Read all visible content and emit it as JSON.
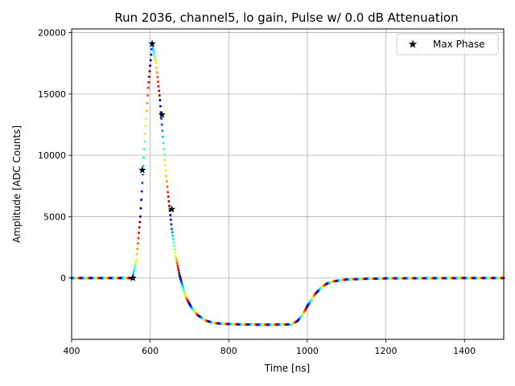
{
  "chart_data": {
    "type": "scatter",
    "title": "Run 2036, channel5, lo gain, Pulse w/ 0.0 dB Attenuation",
    "xlabel": "Time [ns]",
    "ylabel": "Amplitude [ADC Counts]",
    "xlim": [
      400,
      1500
    ],
    "ylim": [
      -5000,
      20300
    ],
    "xticks": [
      400,
      600,
      800,
      1000,
      1200,
      1400
    ],
    "xtick_labels": [
      "400",
      "600",
      "800",
      "1000",
      "1200",
      "1400"
    ],
    "yticks": [
      0,
      5000,
      10000,
      15000,
      20000
    ],
    "ytick_labels": [
      "0",
      "5000",
      "10000",
      "15000",
      "20000"
    ],
    "grid": true,
    "legend": {
      "placement": "top-right",
      "entries": [
        "Max Phase"
      ]
    },
    "colormap": "jet",
    "series": [
      {
        "name": "",
        "marker": "dot",
        "colored_by": "phase",
        "waveform": {
          "x": [
            400,
            555,
            565,
            575,
            585,
            595,
            605,
            615,
            625,
            635,
            645,
            655,
            665,
            675,
            690,
            705,
            720,
            740,
            760,
            780,
            800,
            830,
            870,
            920,
            960,
            975,
            990,
            1000,
            1010,
            1020,
            1035,
            1050,
            1070,
            1100,
            1150,
            1200,
            1300,
            1400,
            1500
          ],
          "y": [
            0,
            0,
            1500,
            5000,
            10500,
            15500,
            19100,
            17500,
            14500,
            10500,
            7000,
            4000,
            1800,
            200,
            -1500,
            -2400,
            -3000,
            -3450,
            -3650,
            -3720,
            -3750,
            -3780,
            -3800,
            -3800,
            -3780,
            -3500,
            -2900,
            -2300,
            -1800,
            -1300,
            -800,
            -450,
            -250,
            -120,
            -60,
            -30,
            -15,
            -5,
            0
          ]
        }
      },
      {
        "name": "Max Phase",
        "marker": "star",
        "color": "#000000",
        "x": [
          556,
          580,
          605,
          630,
          655
        ],
        "y": [
          0,
          8800,
          19100,
          13300,
          5600
        ]
      }
    ]
  }
}
